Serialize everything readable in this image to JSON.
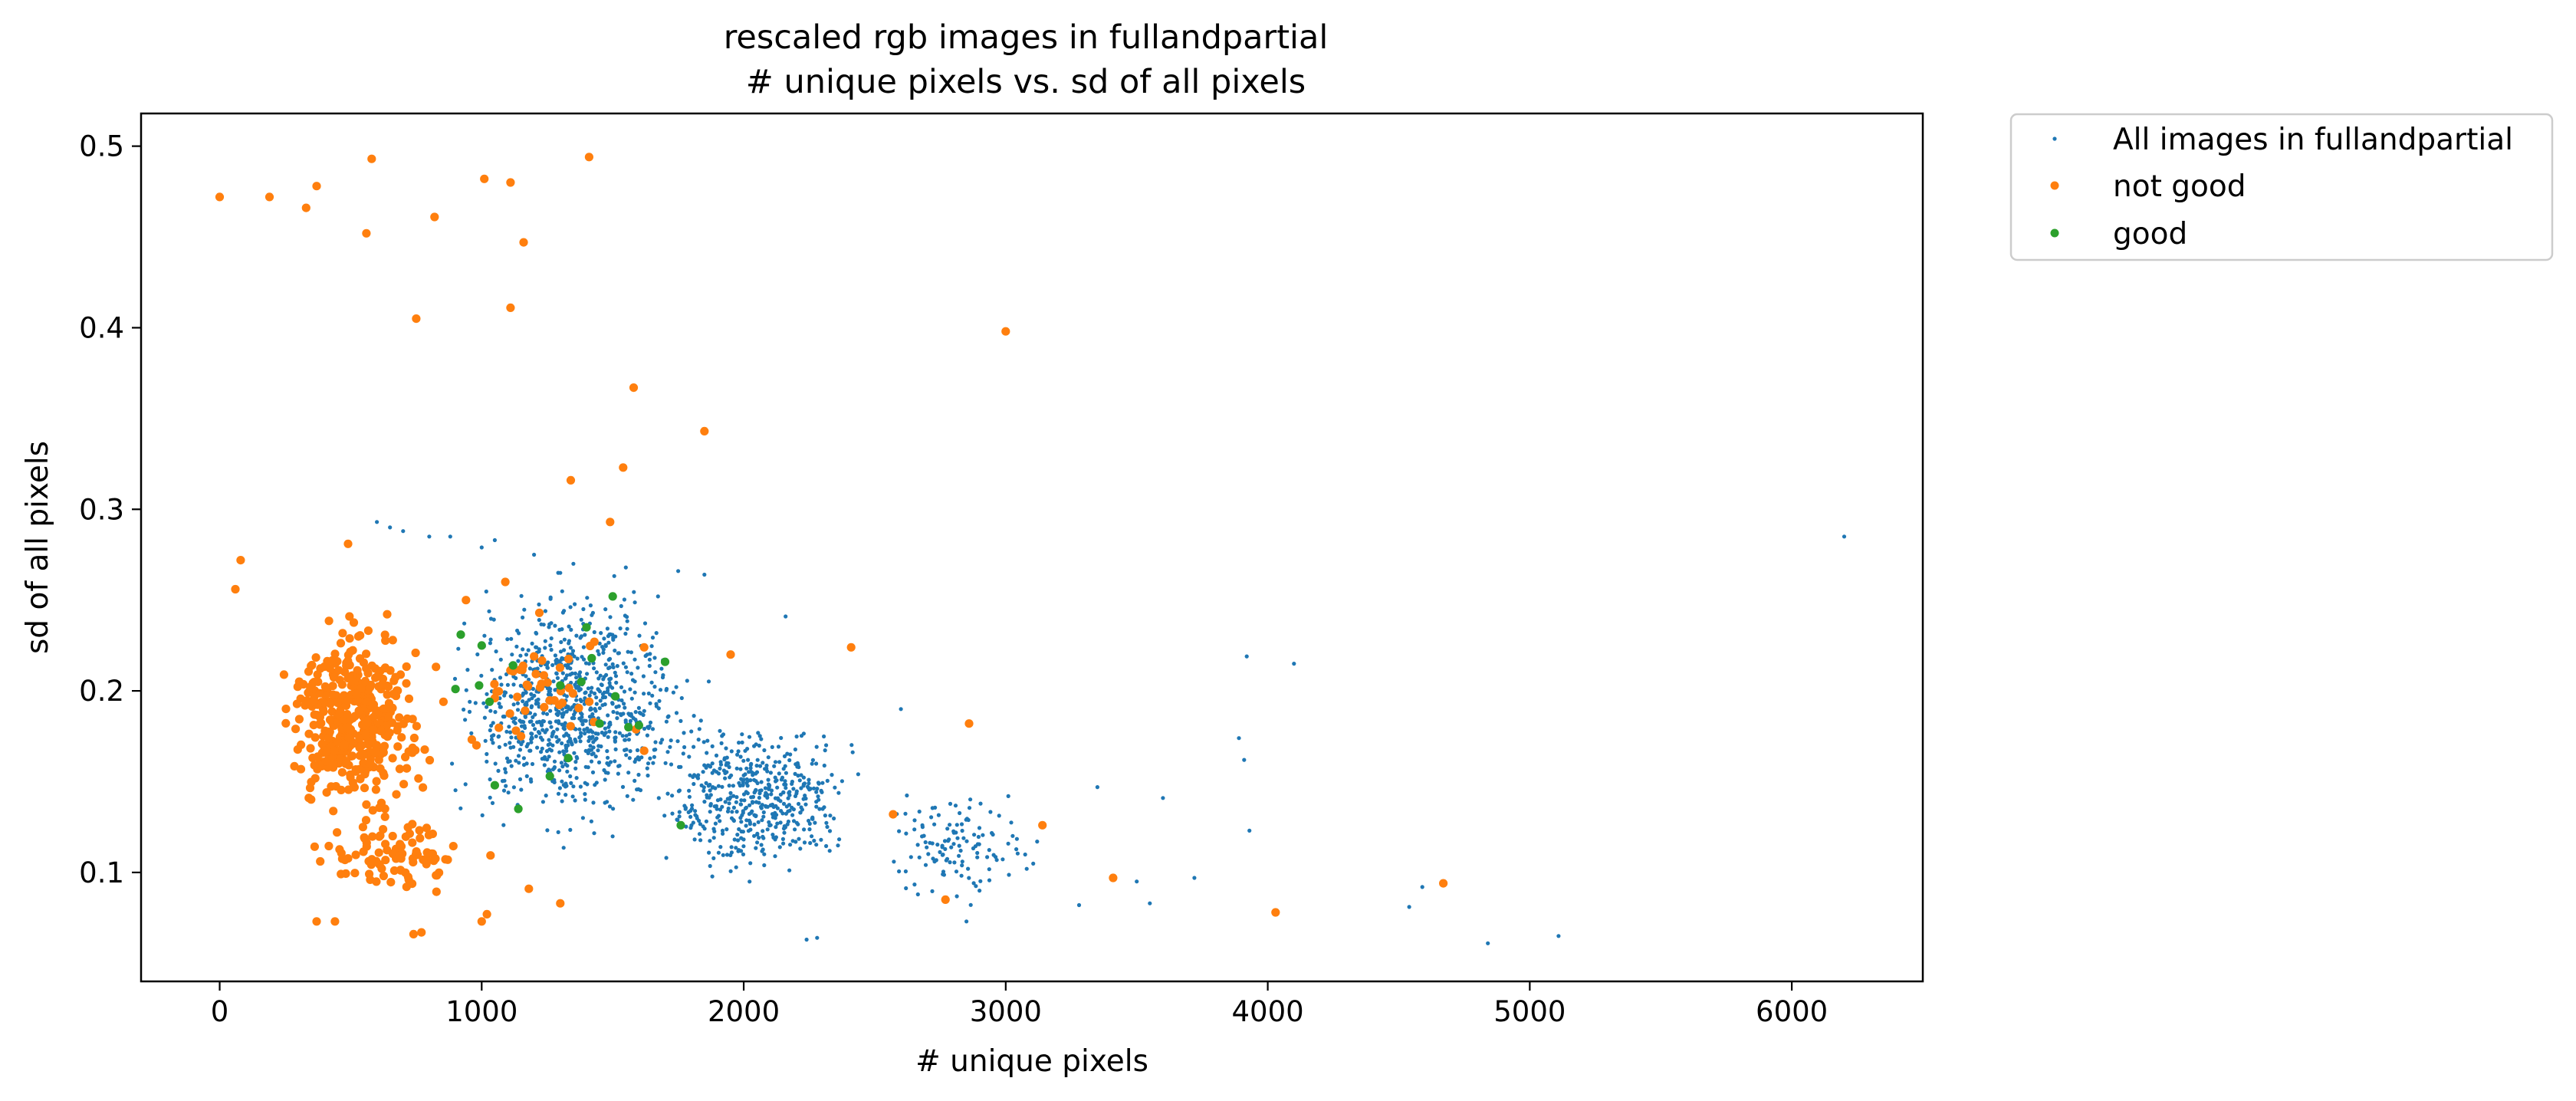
{
  "chart_data": {
    "type": "scatter",
    "title": [
      "rescaled rgb images in fullandpartial",
      "# unique pixels vs. sd of all pixels"
    ],
    "xlabel": "# unique pixels",
    "ylabel": "sd of all pixels",
    "xlim": [
      -300,
      6500
    ],
    "ylim": [
      0.04,
      0.518
    ],
    "xticks": [
      0,
      1000,
      2000,
      3000,
      4000,
      5000,
      6000
    ],
    "yticks": [
      0.1,
      0.2,
      0.3,
      0.4,
      0.5
    ],
    "xtick_labels": [
      "0",
      "1000",
      "2000",
      "3000",
      "4000",
      "5000",
      "6000"
    ],
    "ytick_labels": [
      "0.1",
      "0.2",
      "0.3",
      "0.4",
      "0.5"
    ],
    "grid": false,
    "legend_position": "outside-top-right",
    "series": [
      {
        "name": "All images in fullandpartial",
        "color": "#1f77b4",
        "marker": "small-dot",
        "cloud": [
          {
            "count": 900,
            "x_range": [
              700,
              2000
            ],
            "y_range": [
              0.1,
              0.28
            ]
          },
          {
            "count": 500,
            "x_range": [
              1500,
              2600
            ],
            "y_range": [
              0.08,
              0.2
            ]
          },
          {
            "count": 120,
            "x_range": [
              2400,
              3200
            ],
            "y_range": [
              0.07,
              0.16
            ]
          }
        ],
        "points": [
          [
            2240,
            0.063
          ],
          [
            2280,
            0.064
          ],
          [
            4840,
            0.061
          ],
          [
            5110,
            0.065
          ],
          [
            4540,
            0.081
          ],
          [
            4590,
            0.092
          ],
          [
            3930,
            0.123
          ],
          [
            3910,
            0.162
          ],
          [
            3890,
            0.174
          ],
          [
            3920,
            0.219
          ],
          [
            4100,
            0.215
          ],
          [
            3600,
            0.141
          ],
          [
            3720,
            0.097
          ],
          [
            3550,
            0.083
          ],
          [
            3280,
            0.082
          ],
          [
            3350,
            0.147
          ],
          [
            3500,
            0.095
          ],
          [
            3010,
            0.142
          ],
          [
            3080,
            0.102
          ],
          [
            3120,
            0.117
          ],
          [
            6200,
            0.285
          ],
          [
            2160,
            0.241
          ],
          [
            2600,
            0.19
          ],
          [
            2900,
            0.09
          ],
          [
            2850,
            0.073
          ],
          [
            600,
            0.293
          ],
          [
            650,
            0.29
          ],
          [
            700,
            0.288
          ],
          [
            800,
            0.285
          ],
          [
            880,
            0.285
          ],
          [
            1050,
            0.283
          ],
          [
            1200,
            0.275
          ],
          [
            1350,
            0.27
          ],
          [
            1550,
            0.268
          ],
          [
            1750,
            0.266
          ],
          [
            1850,
            0.264
          ],
          [
            1000,
            0.279
          ],
          [
            1300,
            0.265
          ]
        ]
      },
      {
        "name": "not good",
        "color": "#ff7f0e",
        "marker": "dot",
        "cloud": [
          {
            "count": 420,
            "x_range": [
              150,
              900
            ],
            "y_range": [
              0.11,
              0.26
            ]
          },
          {
            "count": 90,
            "x_range": [
              200,
              1100
            ],
            "y_range": [
              0.08,
              0.14
            ]
          },
          {
            "count": 40,
            "x_range": [
              700,
              1700
            ],
            "y_range": [
              0.15,
              0.25
            ]
          }
        ],
        "points": [
          [
            0,
            0.472
          ],
          [
            190,
            0.472
          ],
          [
            330,
            0.466
          ],
          [
            370,
            0.478
          ],
          [
            580,
            0.493
          ],
          [
            560,
            0.452
          ],
          [
            820,
            0.461
          ],
          [
            1010,
            0.482
          ],
          [
            1110,
            0.48
          ],
          [
            1160,
            0.447
          ],
          [
            1410,
            0.494
          ],
          [
            750,
            0.405
          ],
          [
            1110,
            0.411
          ],
          [
            3000,
            0.398
          ],
          [
            1580,
            0.367
          ],
          [
            1850,
            0.343
          ],
          [
            1540,
            0.323
          ],
          [
            1340,
            0.316
          ],
          [
            1490,
            0.293
          ],
          [
            490,
            0.281
          ],
          [
            80,
            0.272
          ],
          [
            60,
            0.256
          ],
          [
            2410,
            0.224
          ],
          [
            1950,
            0.22
          ],
          [
            2860,
            0.182
          ],
          [
            1620,
            0.224
          ],
          [
            1300,
            0.083
          ],
          [
            1180,
            0.091
          ],
          [
            1000,
            0.073
          ],
          [
            1020,
            0.077
          ],
          [
            740,
            0.066
          ],
          [
            770,
            0.067
          ],
          [
            370,
            0.073
          ],
          [
            440,
            0.073
          ],
          [
            2570,
            0.132
          ],
          [
            3140,
            0.126
          ],
          [
            2770,
            0.085
          ],
          [
            3410,
            0.097
          ],
          [
            4030,
            0.078
          ],
          [
            4670,
            0.094
          ],
          [
            1430,
            0.227
          ],
          [
            1620,
            0.167
          ],
          [
            1200,
            0.219
          ],
          [
            1050,
            0.196
          ],
          [
            1150,
            0.175
          ],
          [
            980,
            0.17
          ],
          [
            1090,
            0.26
          ],
          [
            1220,
            0.243
          ],
          [
            940,
            0.25
          ]
        ]
      },
      {
        "name": "good",
        "color": "#2ca02c",
        "marker": "dot",
        "points": [
          [
            920,
            0.231
          ],
          [
            1000,
            0.225
          ],
          [
            1120,
            0.214
          ],
          [
            990,
            0.203
          ],
          [
            1030,
            0.194
          ],
          [
            900,
            0.201
          ],
          [
            1300,
            0.203
          ],
          [
            1380,
            0.205
          ],
          [
            1400,
            0.235
          ],
          [
            1420,
            0.218
          ],
          [
            1500,
            0.252
          ],
          [
            1510,
            0.197
          ],
          [
            1450,
            0.182
          ],
          [
            1560,
            0.18
          ],
          [
            1600,
            0.181
          ],
          [
            1700,
            0.216
          ],
          [
            1760,
            0.126
          ],
          [
            1140,
            0.135
          ],
          [
            1050,
            0.148
          ],
          [
            1260,
            0.153
          ],
          [
            1330,
            0.163
          ]
        ]
      }
    ]
  }
}
